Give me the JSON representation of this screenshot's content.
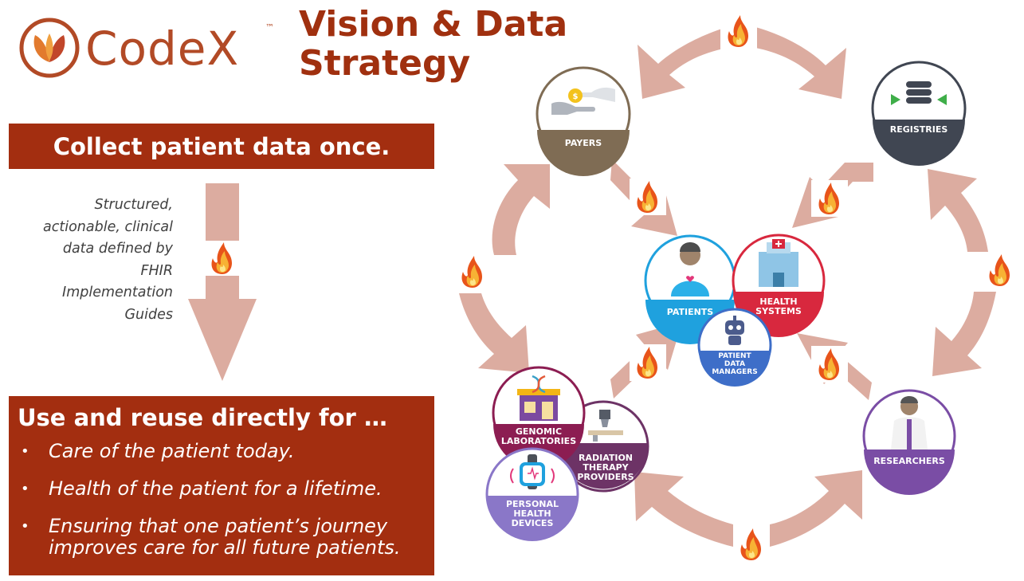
{
  "logo": {
    "name": "CodeX",
    "trademark": "™"
  },
  "title": {
    "line1": "Vision & Data",
    "line2": "Strategy"
  },
  "collect_banner": "Collect patient data once.",
  "structured_text": [
    "Structured,",
    "actionable, clinical",
    "data defined by",
    "FHIR",
    "Implementation",
    "Guides"
  ],
  "use_box": {
    "title": "Use and reuse directly for …",
    "bullets": [
      [
        "Care of the patient today."
      ],
      [
        "Health of the patient for a lifetime."
      ],
      [
        "Ensuring that one patient’s journey",
        "improves care for all future patients."
      ]
    ]
  },
  "nodes": {
    "payers": "PAYERS",
    "registries": "REGISTRIES",
    "patients": "PATIENTS",
    "health_systems": [
      "HEALTH",
      "SYSTEMS"
    ],
    "patient_data_managers": [
      "PATIENT",
      "DATA",
      "MANAGERS"
    ],
    "genomic_laboratories": [
      "GENOMIC",
      "LABORATORIES"
    ],
    "radiation_therapy_providers": [
      "RADIATION",
      "THERAPY",
      "PROVIDERS"
    ],
    "personal_health_devices": [
      "PERSONAL",
      "HEALTH",
      "DEVICES"
    ],
    "researchers": "RESEARCHERS"
  },
  "colors": {
    "brand": "#b24a26",
    "title": "#a0300f",
    "banner": "#a32e10",
    "arrow": "#dcaca0",
    "payers": "#7f6c54",
    "registries": "#404652",
    "patients": "#1fa1de",
    "health_systems": "#d8283e",
    "patient_data_managers": "#3e6ec8",
    "genomic": "#8c1d52",
    "radiation": "#6d3366",
    "devices": "#8a77c8",
    "researchers": "#7a4da5"
  }
}
